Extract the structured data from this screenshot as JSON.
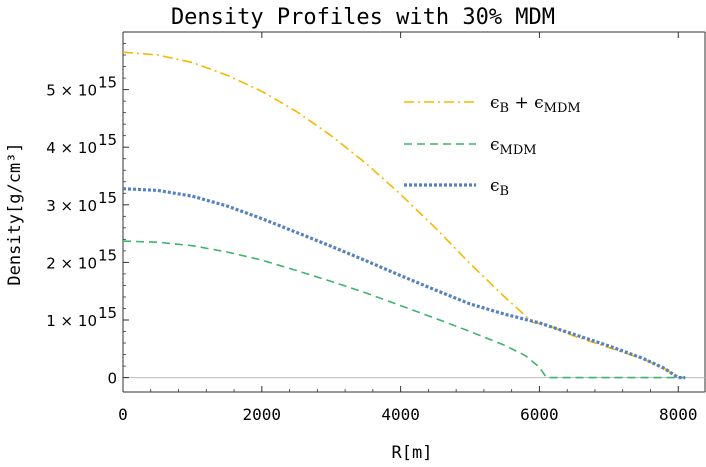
{
  "chart_data": {
    "type": "line",
    "title": "Density Profiles with 30% MDM",
    "xlabel": "R[m]",
    "ylabel": "Density[g/cm³]",
    "xlim": [
      0,
      8400
    ],
    "ylim": [
      -250000000000000.0,
      6000000000000000.0
    ],
    "grid": false,
    "legend_position": "top-right",
    "x_ticks": [
      {
        "value": 0,
        "label": "0"
      },
      {
        "value": 2000,
        "label": "2000"
      },
      {
        "value": 4000,
        "label": "4000"
      },
      {
        "value": 6000,
        "label": "6000"
      },
      {
        "value": 8000,
        "label": "8000"
      }
    ],
    "y_ticks": [
      {
        "value": 0,
        "mantissa": "0",
        "exponent": ""
      },
      {
        "value": 1000000000000000.0,
        "mantissa": "1 × 10",
        "exponent": "15"
      },
      {
        "value": 2000000000000000.0,
        "mantissa": "2 × 10",
        "exponent": "15"
      },
      {
        "value": 3000000000000000.0,
        "mantissa": "3 × 10",
        "exponent": "15"
      },
      {
        "value": 4000000000000000.0,
        "mantissa": "4 × 10",
        "exponent": "15"
      },
      {
        "value": 5000000000000000.0,
        "mantissa": "5 × 10",
        "exponent": "15"
      }
    ],
    "series": [
      {
        "name": "ϵB + ϵMDM",
        "legend_main": "ϵ",
        "legend_sub1": "B",
        "legend_mid": " + ϵ",
        "legend_sub2": "MDM",
        "color": "#f5b800",
        "dash": "10,4,2,4",
        "width": 1.6,
        "x": [
          0,
          500,
          1000,
          1500,
          2000,
          2500,
          3000,
          3500,
          4000,
          4500,
          5000,
          5500,
          5900,
          6100,
          6500,
          7000,
          7500,
          7800,
          8000,
          8100
        ],
        "values": [
          5650000000000000.0,
          5600000000000000.0,
          5470000000000000.0,
          5250000000000000.0,
          4970000000000000.0,
          4620000000000000.0,
          4200000000000000.0,
          3720000000000000.0,
          3180000000000000.0,
          2600000000000000.0,
          1980000000000000.0,
          1400000000000000.0,
          960000000000000.0,
          920000000000000.0,
          720000000000000.0,
          520000000000000.0,
          320000000000000.0,
          160000000000000.0,
          0.0,
          0.0
        ]
      },
      {
        "name": "ϵMDM",
        "legend_main": "ϵ",
        "legend_sub1": "MDM",
        "legend_mid": "",
        "legend_sub2": "",
        "color": "#3db36e",
        "dash": "8,5",
        "width": 1.6,
        "x": [
          0,
          500,
          1000,
          1500,
          2000,
          2500,
          3000,
          3500,
          4000,
          4500,
          5000,
          5500,
          5800,
          6000,
          6100,
          6500,
          7000,
          7500,
          8000,
          8100
        ],
        "values": [
          2370000000000000.0,
          2350000000000000.0,
          2290000000000000.0,
          2180000000000000.0,
          2040000000000000.0,
          1860000000000000.0,
          1670000000000000.0,
          1470000000000000.0,
          1250000000000000.0,
          1030000000000000.0,
          800000000000000.0,
          560000000000000.0,
          380000000000000.0,
          180000000000000.0,
          0.0,
          0.0,
          0.0,
          0.0,
          0.0,
          0.0
        ]
      },
      {
        "name": "ϵB",
        "legend_main": "ϵ",
        "legend_sub1": "B",
        "legend_mid": "",
        "legend_sub2": "",
        "color": "#5581c1",
        "dash": "3,2",
        "width": 3.2,
        "x": [
          0,
          500,
          1000,
          1500,
          2000,
          2500,
          3000,
          3500,
          4000,
          4500,
          5000,
          5500,
          6000,
          6500,
          7000,
          7500,
          7800,
          8000,
          8100
        ],
        "values": [
          3280000000000000.0,
          3250000000000000.0,
          3150000000000000.0,
          2980000000000000.0,
          2760000000000000.0,
          2520000000000000.0,
          2280000000000000.0,
          2030000000000000.0,
          1770000000000000.0,
          1520000000000000.0,
          1280000000000000.0,
          1100000000000000.0,
          950000000000000.0,
          750000000000000.0,
          550000000000000.0,
          330000000000000.0,
          160000000000000.0,
          0.0,
          0.0
        ]
      }
    ]
  }
}
